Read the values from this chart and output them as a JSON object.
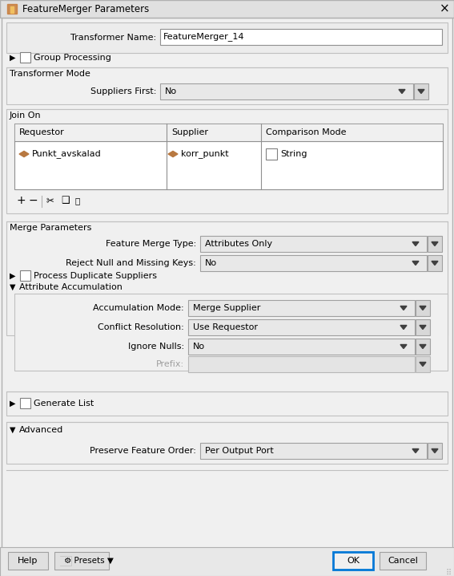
{
  "title": "FeatureMerger Parameters",
  "bg_color": "#f0f0f0",
  "white": "#ffffff",
  "border_light": "#c8c8c8",
  "border_dark": "#808080",
  "blue_highlight": "#0078d7",
  "text_color": "#000000",
  "transformer_name": "FeatureMerger_14",
  "suppliers_first": "No",
  "requestor": "Punkt_avskalad",
  "supplier": "korr_punkt",
  "comparison_mode": "String",
  "feature_merge_type": "Attributes Only",
  "reject_null": "No",
  "accumulation_mode": "Merge Supplier",
  "conflict_resolution": "Use Requestor",
  "ignore_nulls": "No",
  "preserve_order": "Per Output Port",
  "arrow_color": "#b87840",
  "dd_bg": "#e8e8e8",
  "section_bg": "#ececec"
}
